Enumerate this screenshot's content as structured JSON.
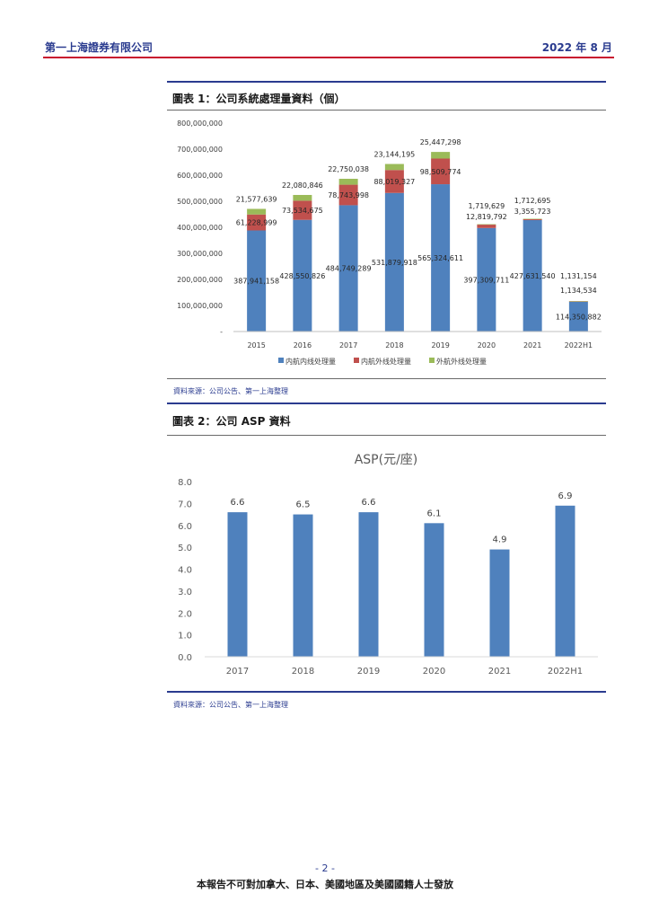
{
  "header": {
    "company": "第一上海證券有限公司",
    "date": "2022 年 8 月"
  },
  "figure1": {
    "title": "圖表 1：公司系統處理量資料（個）",
    "source": "資料來源：公司公告、第一上海整理",
    "chart_data": {
      "type": "bar",
      "stacked": true,
      "categories": [
        "2015",
        "2016",
        "2017",
        "2018",
        "2019",
        "2020",
        "2021",
        "2022H1"
      ],
      "y_ticks": [
        "800,000,000",
        "700,000,000",
        "600,000,000",
        "500,000,000",
        "400,000,000",
        "300,000,000",
        "200,000,000",
        "100,000,000",
        "-"
      ],
      "ylim": [
        0,
        800000000
      ],
      "series": [
        {
          "name": "内航内线处理量",
          "color": "#4f81bd",
          "values": [
            387941158,
            428550826,
            484749289,
            531879918,
            565324611,
            397309711,
            427631540,
            114350882
          ],
          "labels": [
            "387,941,158",
            "428,550,826",
            "484,749,289",
            "531,879,918",
            "565,324,611",
            "397,309,711",
            "427,631,540",
            "114,350,882"
          ]
        },
        {
          "name": "内航外线处理量",
          "color": "#c0504d",
          "values": [
            61228999,
            73534675,
            78743998,
            88019327,
            98509774,
            12819792,
            3355723,
            1134534
          ],
          "labels": [
            "61,228,999",
            "73,534,675",
            "78,743,998",
            "88,019,327",
            "98,509,774",
            "12,819,792",
            "3,355,723",
            "1,134,534"
          ]
        },
        {
          "name": "外航外线处理量",
          "color": "#9bbb59",
          "values": [
            21577639,
            22080846,
            22750038,
            23144195,
            25447298,
            1719629,
            1712695,
            1131154
          ],
          "labels": [
            "21,577,639",
            "22,080,846",
            "22,750,038",
            "23,144,195",
            "25,447,298",
            "1,719,629",
            "1,712,695",
            "1,131,154"
          ]
        }
      ],
      "legend": "bottom"
    }
  },
  "figure2": {
    "title": "圖表 2：公司 ASP 資料",
    "source": "資料來源：公司公告、第一上海整理",
    "chart_data": {
      "type": "bar",
      "title": "ASP(元/座)",
      "categories": [
        "2017",
        "2018",
        "2019",
        "2020",
        "2021",
        "2022H1"
      ],
      "values": [
        6.6,
        6.5,
        6.6,
        6.1,
        4.9,
        6.9
      ],
      "labels": [
        "6.6",
        "6.5",
        "6.6",
        "6.1",
        "4.9",
        "6.9"
      ],
      "y_ticks": [
        "8.0",
        "7.0",
        "6.0",
        "5.0",
        "4.0",
        "3.0",
        "2.0",
        "1.0",
        "0.0"
      ],
      "ylim": [
        0,
        8
      ],
      "color": "#4f81bd"
    }
  },
  "footer": {
    "page": "- 2 -",
    "note": "本報告不可對加拿大、日本、美國地區及美國國籍人士發放"
  }
}
